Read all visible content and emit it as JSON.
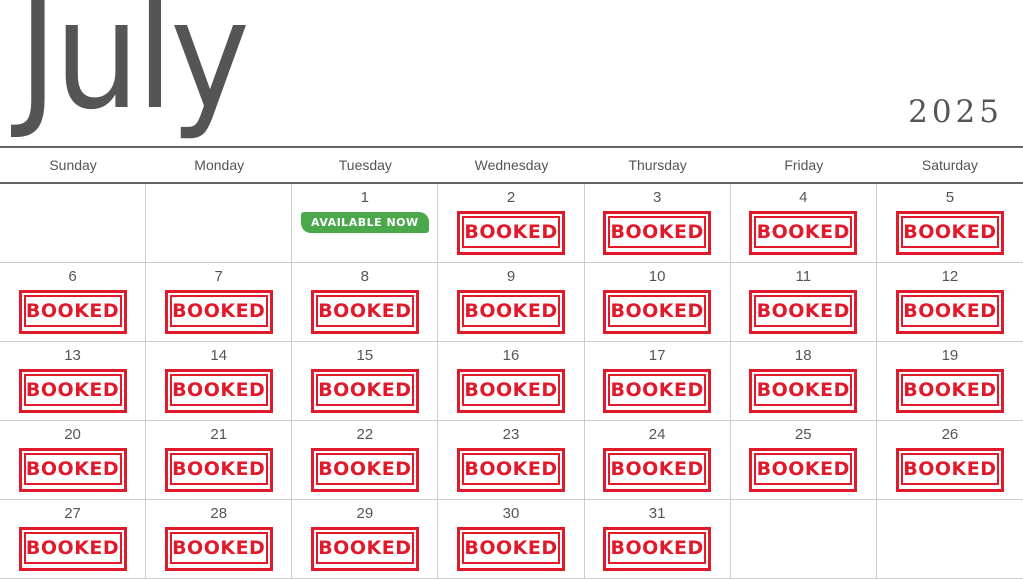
{
  "header": {
    "month": "July",
    "year": "2025"
  },
  "weekdays": [
    "Sunday",
    "Monday",
    "Tuesday",
    "Wednesday",
    "Thursday",
    "Friday",
    "Saturday"
  ],
  "labels": {
    "booked": "BOOKED",
    "available": "AVAILABLE NOW"
  },
  "colors": {
    "booked": "#e0192b",
    "available": "#4aa84a",
    "text": "#555555"
  },
  "cells": [
    {
      "day": "",
      "status": ""
    },
    {
      "day": "",
      "status": ""
    },
    {
      "day": "1",
      "status": "available"
    },
    {
      "day": "2",
      "status": "booked"
    },
    {
      "day": "3",
      "status": "booked"
    },
    {
      "day": "4",
      "status": "booked"
    },
    {
      "day": "5",
      "status": "booked"
    },
    {
      "day": "6",
      "status": "booked"
    },
    {
      "day": "7",
      "status": "booked"
    },
    {
      "day": "8",
      "status": "booked"
    },
    {
      "day": "9",
      "status": "booked"
    },
    {
      "day": "10",
      "status": "booked"
    },
    {
      "day": "11",
      "status": "booked"
    },
    {
      "day": "12",
      "status": "booked"
    },
    {
      "day": "13",
      "status": "booked"
    },
    {
      "day": "14",
      "status": "booked"
    },
    {
      "day": "15",
      "status": "booked"
    },
    {
      "day": "16",
      "status": "booked"
    },
    {
      "day": "17",
      "status": "booked"
    },
    {
      "day": "18",
      "status": "booked"
    },
    {
      "day": "19",
      "status": "booked"
    },
    {
      "day": "20",
      "status": "booked"
    },
    {
      "day": "21",
      "status": "booked"
    },
    {
      "day": "22",
      "status": "booked"
    },
    {
      "day": "23",
      "status": "booked"
    },
    {
      "day": "24",
      "status": "booked"
    },
    {
      "day": "25",
      "status": "booked"
    },
    {
      "day": "26",
      "status": "booked"
    },
    {
      "day": "27",
      "status": "booked"
    },
    {
      "day": "28",
      "status": "booked"
    },
    {
      "day": "29",
      "status": "booked"
    },
    {
      "day": "30",
      "status": "booked"
    },
    {
      "day": "31",
      "status": "booked"
    },
    {
      "day": "",
      "status": ""
    },
    {
      "day": "",
      "status": ""
    }
  ]
}
